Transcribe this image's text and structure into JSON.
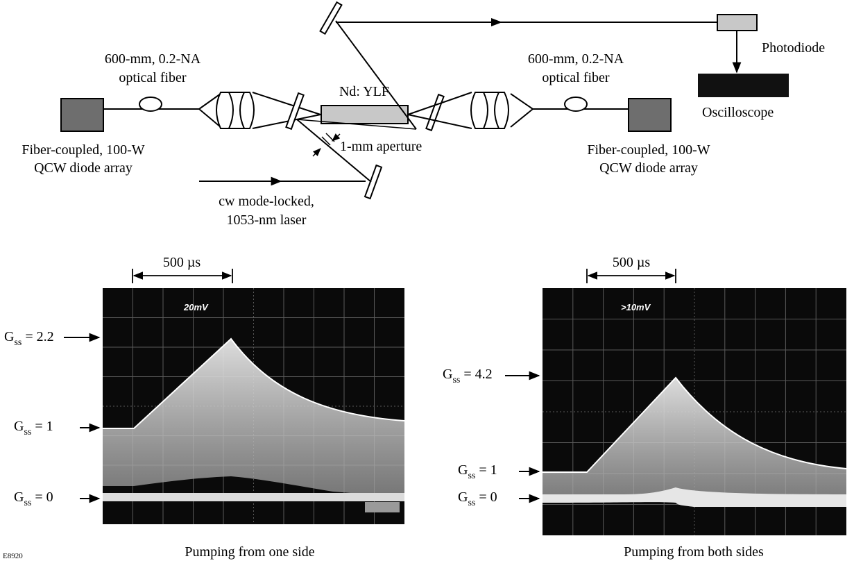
{
  "setup": {
    "fiber_left_line1": "600-mm, 0.2-NA",
    "fiber_left_line2": "optical fiber",
    "fiber_right_line1": "600-mm, 0.2-NA",
    "fiber_right_line2": "optical fiber",
    "crystal": "Nd: YLF",
    "aperture": "1-mm aperture",
    "diode_left_line1": "Fiber-coupled, 100-W",
    "diode_left_line2": "QCW diode array",
    "diode_right_line1": "Fiber-coupled, 100-W",
    "diode_right_line2": "QCW diode array",
    "laser_line1": "cw mode-locked,",
    "laser_line2": "1053-nm laser",
    "photodiode": "Photodiode",
    "oscilloscope": "Oscilloscope"
  },
  "scope_left": {
    "time_scale": "500 µs",
    "screen_label": "20mV",
    "caption": "Pumping from one side",
    "levels": [
      {
        "g": "G",
        "sub": "ss",
        "value": "= 2.2"
      },
      {
        "g": "G",
        "sub": "ss",
        "value": "= 1"
      },
      {
        "g": "G",
        "sub": "ss",
        "value": "= 0"
      }
    ]
  },
  "scope_right": {
    "time_scale": "500 µs",
    "screen_label": ">10mV",
    "caption": "Pumping from both sides",
    "levels": [
      {
        "g": "G",
        "sub": "ss",
        "value": "= 4.2"
      },
      {
        "g": "G",
        "sub": "ss",
        "value": "= 1"
      },
      {
        "g": "G",
        "sub": "ss",
        "value": "= 0"
      }
    ]
  },
  "figure_id": "E8920",
  "colors": {
    "diode_fill": "#6e6e6e",
    "crystal_fill": "#c8c8c8",
    "photodiode_fill": "#c8c8c8",
    "oscilloscope_fill": "#111111",
    "screen_bg": "#0a0a0a",
    "trace": "#e8e8e8"
  }
}
